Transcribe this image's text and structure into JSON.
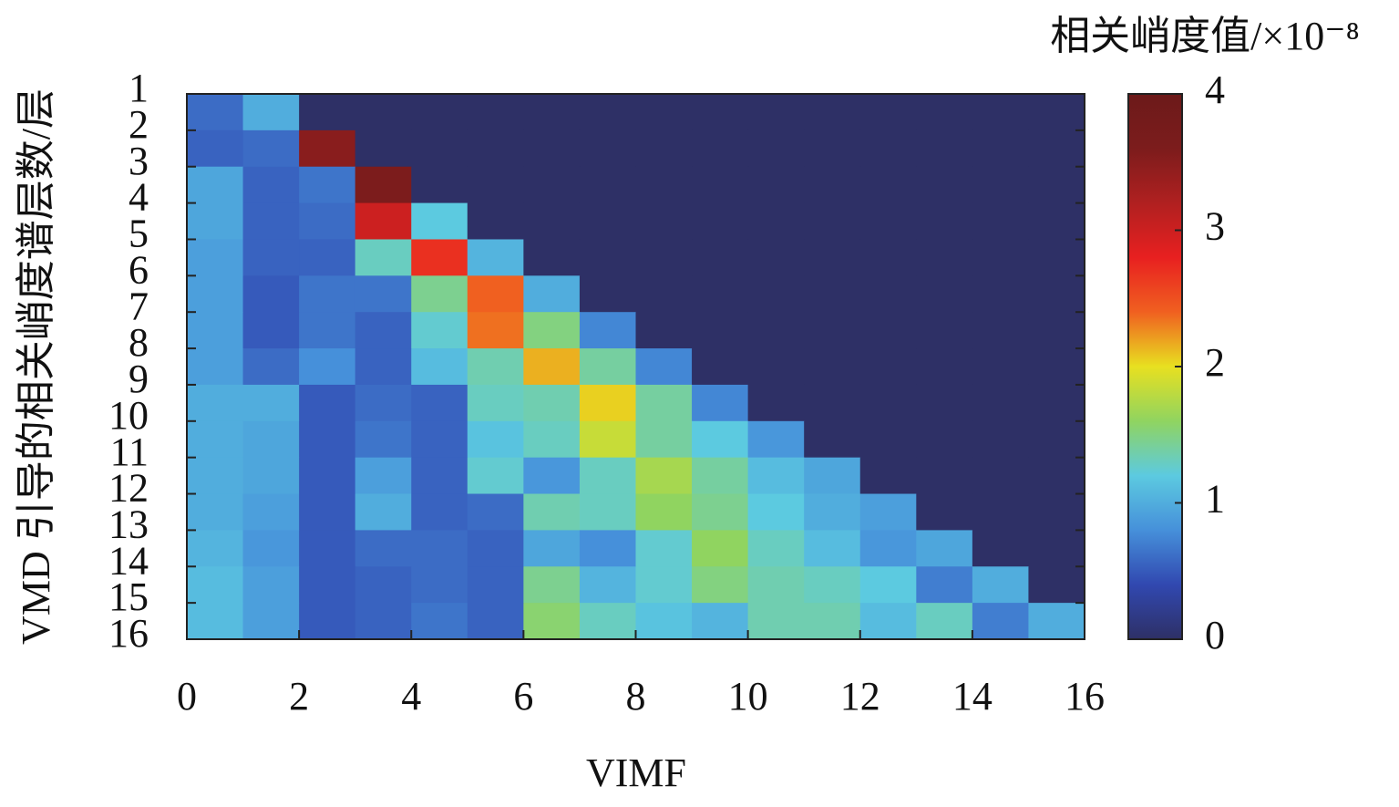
{
  "chart_data": {
    "type": "heatmap",
    "xlabel": "VIMF",
    "ylabel": "VMD 引导的相关峭度谱层数/层",
    "colorbar_label": "相关峭度值/×10⁻⁸",
    "xlim": [
      0,
      16
    ],
    "xticks": [
      0,
      2,
      4,
      6,
      8,
      10,
      12,
      14,
      16
    ],
    "ylim": [
      1,
      16
    ],
    "yticks": [
      1,
      2,
      3,
      4,
      5,
      6,
      7,
      8,
      9,
      10,
      11,
      12,
      13,
      14,
      15,
      16
    ],
    "clim": [
      0,
      4
    ],
    "cticks": [
      0,
      1,
      2,
      3,
      4
    ],
    "colormap": [
      "#2e3066",
      "#3148b0",
      "#4690da",
      "#5ccae0",
      "#90d460",
      "#e8e020",
      "#f06020",
      "#e82020",
      "#b02020",
      "#7c1c1c",
      "#6c1a1a"
    ],
    "z": [
      [
        0.6,
        1.0,
        0,
        0,
        0,
        0,
        0,
        0,
        0,
        0,
        0,
        0,
        0,
        0,
        0,
        0
      ],
      [
        0.55,
        0.6,
        3.5,
        0,
        0,
        0,
        0,
        0,
        0,
        0,
        0,
        0,
        0,
        0,
        0,
        0
      ],
      [
        0.95,
        0.55,
        0.65,
        3.6,
        0,
        0,
        0,
        0,
        0,
        0,
        0,
        0,
        0,
        0,
        0,
        0
      ],
      [
        0.95,
        0.55,
        0.6,
        3.0,
        1.2,
        0,
        0,
        0,
        0,
        0,
        0,
        0,
        0,
        0,
        0,
        0
      ],
      [
        0.9,
        0.55,
        0.55,
        1.3,
        2.7,
        1.05,
        0,
        0,
        0,
        0,
        0,
        0,
        0,
        0,
        0,
        0
      ],
      [
        0.9,
        0.5,
        0.65,
        0.65,
        1.45,
        2.4,
        1.0,
        0,
        0,
        0,
        0,
        0,
        0,
        0,
        0,
        0
      ],
      [
        0.9,
        0.5,
        0.65,
        0.55,
        1.25,
        2.35,
        1.5,
        0.75,
        0,
        0,
        0,
        0,
        0,
        0,
        0,
        0
      ],
      [
        0.9,
        0.6,
        0.8,
        0.55,
        1.1,
        1.35,
        2.15,
        1.4,
        0.75,
        0,
        0,
        0,
        0,
        0,
        0,
        0
      ],
      [
        1.0,
        1.0,
        0.5,
        0.6,
        0.55,
        1.3,
        1.35,
        2.05,
        1.4,
        0.75,
        0,
        0,
        0,
        0,
        0,
        0
      ],
      [
        1.0,
        0.95,
        0.5,
        0.65,
        0.55,
        1.15,
        1.3,
        1.85,
        1.4,
        1.2,
        0.85,
        0,
        0,
        0,
        0,
        0
      ],
      [
        1.0,
        0.95,
        0.5,
        0.9,
        0.55,
        1.25,
        0.85,
        1.3,
        1.7,
        1.4,
        1.1,
        0.95,
        0,
        0,
        0,
        0
      ],
      [
        1.0,
        0.9,
        0.5,
        1.0,
        0.55,
        0.6,
        1.35,
        1.3,
        1.6,
        1.45,
        1.2,
        1.0,
        0.9,
        0,
        0,
        0
      ],
      [
        1.05,
        0.85,
        0.5,
        0.6,
        0.6,
        0.55,
        0.95,
        0.8,
        1.25,
        1.6,
        1.3,
        1.1,
        0.85,
        0.95,
        0,
        0
      ],
      [
        1.1,
        0.9,
        0.5,
        0.55,
        0.6,
        0.55,
        1.45,
        1.05,
        1.25,
        1.5,
        1.35,
        1.3,
        1.2,
        0.7,
        1.0,
        0
      ],
      [
        1.1,
        0.9,
        0.5,
        0.55,
        0.65,
        0.55,
        1.55,
        1.3,
        1.15,
        1.05,
        1.35,
        1.35,
        1.1,
        1.3,
        0.7,
        1.0
      ]
    ]
  }
}
